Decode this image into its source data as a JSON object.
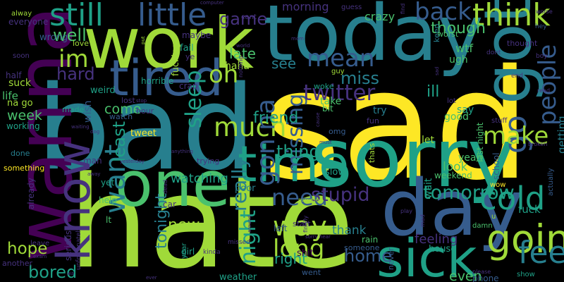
{
  "palette": {
    "background": "#000000",
    "yellow": "#fde725",
    "lime": "#a0da39",
    "green": "#4ac16d",
    "teal": "#1fa187",
    "cyan": "#277f8e",
    "blue": "#365c8d",
    "indigo": "#46327e",
    "purple": "#440154"
  },
  "words": [
    {
      "text": "sad",
      "color": "yellow"
    },
    {
      "text": "bad",
      "color": "cyan"
    },
    {
      "text": "hate",
      "color": "lime"
    },
    {
      "text": "today",
      "color": "cyan"
    },
    {
      "text": "work",
      "color": "lime"
    },
    {
      "text": "sorry",
      "color": "teal"
    },
    {
      "text": "wanna",
      "color": "purple"
    },
    {
      "text": "one",
      "color": "green"
    },
    {
      "text": "time",
      "color": "teal"
    },
    {
      "text": "day",
      "color": "blue"
    },
    {
      "text": "sick",
      "color": "teal"
    },
    {
      "text": "got",
      "color": "cyan"
    },
    {
      "text": "tired",
      "color": "blue"
    },
    {
      "text": "know",
      "color": "indigo"
    },
    {
      "text": "going",
      "color": "lime"
    },
    {
      "text": "still",
      "color": "teal"
    },
    {
      "text": "little",
      "color": "blue"
    },
    {
      "text": "think",
      "color": "lime"
    },
    {
      "text": "back",
      "color": "blue"
    },
    {
      "text": "go",
      "color": "blue"
    },
    {
      "text": "feel",
      "color": "cyan"
    },
    {
      "text": "cold",
      "color": "teal"
    },
    {
      "text": "make",
      "color": "lime"
    },
    {
      "text": "people",
      "color": "blue"
    },
    {
      "text": "want",
      "color": "cyan"
    },
    {
      "text": "oh",
      "color": "lime"
    },
    {
      "text": "im",
      "color": "lime"
    },
    {
      "text": "mean",
      "color": "blue"
    },
    {
      "text": "need",
      "color": "blue"
    },
    {
      "text": "much",
      "color": "lime"
    },
    {
      "text": "sleep",
      "color": "teal"
    },
    {
      "text": "gon na",
      "color": "blue"
    },
    {
      "text": "way",
      "color": "lime"
    },
    {
      "text": "long",
      "color": "lime"
    },
    {
      "text": "missing",
      "color": "blue"
    },
    {
      "text": "stupid",
      "color": "indigo"
    },
    {
      "text": "tomorrow",
      "color": "teal"
    },
    {
      "text": "twitter",
      "color": "indigo"
    },
    {
      "text": "miss",
      "color": "cyan"
    },
    {
      "text": "see",
      "color": "cyan"
    },
    {
      "text": "bored",
      "color": "teal"
    },
    {
      "text": "hope",
      "color": "lime"
    },
    {
      "text": "home",
      "color": "blue"
    },
    {
      "text": "night",
      "color": "teal"
    },
    {
      "text": "really",
      "color": "cyan"
    },
    {
      "text": "least",
      "color": "teal"
    },
    {
      "text": "thing",
      "color": "teal"
    },
    {
      "text": "new",
      "color": "lime"
    },
    {
      "text": "well",
      "color": "green"
    },
    {
      "text": "game",
      "color": "indigo"
    },
    {
      "text": "late",
      "color": "green"
    },
    {
      "text": "hard",
      "color": "indigo"
    },
    {
      "text": "friend",
      "color": "teal"
    },
    {
      "text": "ill",
      "color": "teal"
    },
    {
      "text": "though",
      "color": "green"
    },
    {
      "text": "watching",
      "color": "teal"
    },
    {
      "text": "come",
      "color": "green"
    },
    {
      "text": "week",
      "color": "green"
    },
    {
      "text": "right",
      "color": "teal"
    },
    {
      "text": "tonight",
      "color": "cyan"
    },
    {
      "text": "thank",
      "color": "cyan"
    },
    {
      "text": "feeling",
      "color": "indigo"
    },
    {
      "text": "look",
      "color": "green"
    },
    {
      "text": "even",
      "color": "green"
    },
    {
      "text": "fuck",
      "color": "teal"
    },
    {
      "text": "morning",
      "color": "indigo"
    },
    {
      "text": "crazy",
      "color": "green"
    },
    {
      "text": "haha",
      "color": "lime"
    },
    {
      "text": "wtf",
      "color": "green"
    },
    {
      "text": "ugh",
      "color": "green"
    },
    {
      "text": "cant",
      "color": "indigo"
    },
    {
      "text": "guess",
      "color": "indigo"
    },
    {
      "text": "worst",
      "color": "green"
    },
    {
      "text": "thought",
      "color": "indigo"
    },
    {
      "text": "last night",
      "color": "green"
    },
    {
      "text": "getting",
      "color": "cyan"
    },
    {
      "text": "say",
      "color": "teal"
    },
    {
      "text": "good",
      "color": "green"
    },
    {
      "text": "lot",
      "color": "indigo"
    },
    {
      "text": "stuff",
      "color": "indigo"
    },
    {
      "text": "yeah",
      "color": "green"
    },
    {
      "text": "weekend",
      "color": "green"
    },
    {
      "text": "wow",
      "color": "yellow"
    },
    {
      "text": "school",
      "color": "blue"
    },
    {
      "text": "wait",
      "color": "teal"
    },
    {
      "text": "let",
      "color": "lime"
    },
    {
      "text": "thats",
      "color": "lime"
    },
    {
      "text": "try",
      "color": "cyan"
    },
    {
      "text": "fun",
      "color": "indigo"
    },
    {
      "text": "bit",
      "color": "green"
    },
    {
      "text": "take",
      "color": "green"
    },
    {
      "text": "woke",
      "color": "teal"
    },
    {
      "text": "guy",
      "color": "lime"
    },
    {
      "text": "omg",
      "color": "blue"
    },
    {
      "text": "slow",
      "color": "teal"
    },
    {
      "text": "shit",
      "color": "purple"
    },
    {
      "text": "house",
      "color": "teal"
    },
    {
      "text": "rain",
      "color": "green"
    },
    {
      "text": "never",
      "color": "blue"
    },
    {
      "text": "someone",
      "color": "blue"
    },
    {
      "text": "went",
      "color": "blue"
    },
    {
      "text": "left",
      "color": "blue"
    },
    {
      "text": "start",
      "color": "indigo"
    },
    {
      "text": "poor",
      "color": "cyan"
    },
    {
      "text": "trying",
      "color": "indigo"
    },
    {
      "text": "weather",
      "color": "teal"
    },
    {
      "text": "girl",
      "color": "teal"
    },
    {
      "text": "year",
      "color": "teal"
    },
    {
      "text": "lt",
      "color": "green"
    },
    {
      "text": "car",
      "color": "indigo"
    },
    {
      "text": "help",
      "color": "green"
    },
    {
      "text": "yet",
      "color": "teal"
    },
    {
      "text": "man",
      "color": "indigo"
    },
    {
      "text": "tweet",
      "color": "yellow"
    },
    {
      "text": "hour",
      "color": "indigo"
    },
    {
      "text": "watch",
      "color": "blue"
    },
    {
      "text": "wish",
      "color": "blue"
    },
    {
      "text": "made",
      "color": "teal"
    },
    {
      "text": "lost",
      "color": "indigo"
    },
    {
      "text": "weird",
      "color": "teal"
    },
    {
      "text": "crap",
      "color": "indigo"
    },
    {
      "text": "horrible",
      "color": "teal"
    },
    {
      "text": "fail",
      "color": "teal"
    },
    {
      "text": "maybe",
      "color": "indigo"
    },
    {
      "text": "ye",
      "color": "indigo"
    },
    {
      "text": "fucking",
      "color": "lime"
    },
    {
      "text": "love",
      "color": "lime"
    },
    {
      "text": "wrong",
      "color": "blue"
    },
    {
      "text": "everyone",
      "color": "indigo"
    },
    {
      "text": "alway",
      "color": "lime"
    },
    {
      "text": "soon",
      "color": "indigo"
    },
    {
      "text": "half",
      "color": "indigo"
    },
    {
      "text": "life",
      "color": "green"
    },
    {
      "text": "na go",
      "color": "lime"
    },
    {
      "text": "suck",
      "color": "lime"
    },
    {
      "text": "working",
      "color": "teal"
    },
    {
      "text": "done",
      "color": "cyan"
    },
    {
      "text": "something",
      "color": "yellow"
    },
    {
      "text": "already",
      "color": "indigo"
    },
    {
      "text": "another",
      "color": "indigo"
    },
    {
      "text": "leave",
      "color": "indigo"
    },
    {
      "text": "seriously",
      "color": "indigo"
    },
    {
      "text": "unfortunately",
      "color": "indigo"
    },
    {
      "text": "kinda",
      "color": "indigo"
    },
    {
      "text": "missed",
      "color": "indigo"
    },
    {
      "text": "summer",
      "color": "lime"
    },
    {
      "text": "finally",
      "color": "indigo"
    },
    {
      "text": "end",
      "color": "indigo"
    },
    {
      "text": "boy",
      "color": "indigo"
    },
    {
      "text": "dont",
      "color": "indigo"
    },
    {
      "text": "hey",
      "color": "blue"
    },
    {
      "text": "read",
      "color": "indigo"
    },
    {
      "text": "broken",
      "color": "indigo"
    },
    {
      "text": "actually",
      "color": "blue"
    },
    {
      "text": "damn",
      "color": "green"
    },
    {
      "text": "phone",
      "color": "blue"
    },
    {
      "text": "show",
      "color": "teal"
    },
    {
      "text": "please",
      "color": "indigo"
    },
    {
      "text": "play",
      "color": "indigo"
    },
    {
      "text": "keep",
      "color": "cyan"
    },
    {
      "text": "find",
      "color": "indigo"
    },
    {
      "text": "worse",
      "color": "indigo"
    },
    {
      "text": "computer",
      "color": "indigo"
    },
    {
      "text": "world",
      "color": "indigo"
    },
    {
      "text": "mom",
      "color": "indigo"
    },
    {
      "text": "nothing",
      "color": "indigo"
    },
    {
      "text": "put",
      "color": "lime"
    },
    {
      "text": "stop",
      "color": "indigo"
    },
    {
      "text": "sorry hear",
      "color": "indigo"
    },
    {
      "text": "u",
      "color": "lime"
    },
    {
      "text": "mad",
      "color": "indigo"
    },
    {
      "text": "around",
      "color": "indigo"
    },
    {
      "text": "dead",
      "color": "indigo"
    },
    {
      "text": "yesterday",
      "color": "indigo"
    },
    {
      "text": "away",
      "color": "indigo"
    },
    {
      "text": "anything",
      "color": "indigo"
    },
    {
      "text": "waiting",
      "color": "indigo"
    },
    {
      "text": "dog",
      "color": "indigo"
    },
    {
      "text": "cause",
      "color": "indigo"
    },
    {
      "text": "must",
      "color": "indigo"
    },
    {
      "text": "sad",
      "color": "indigo"
    },
    {
      "text": "exam",
      "color": "indigo"
    },
    {
      "text": "ever",
      "color": "indigo"
    },
    {
      "text": "wa",
      "color": "indigo"
    }
  ]
}
